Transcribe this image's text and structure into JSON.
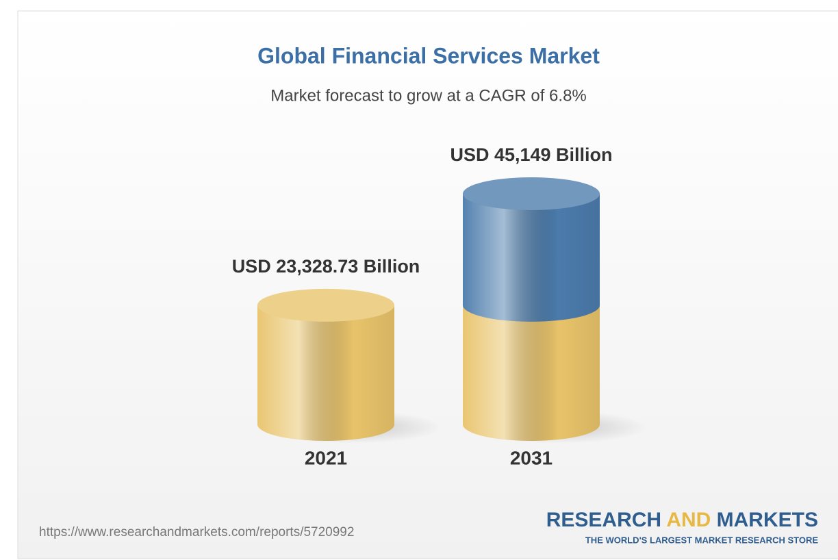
{
  "chart_data": {
    "type": "bar",
    "title": "Global Financial Services Market",
    "subtitle": "Market forecast to grow at a CAGR of 6.8%",
    "categories": [
      "2021",
      "2031"
    ],
    "values": [
      23328.73,
      45149
    ],
    "value_labels": [
      "USD 23,328.73 Billion",
      "USD 45,149 Billion"
    ],
    "color": "#e8c36a",
    "growth_color": "#4b7bab"
  },
  "footer": {
    "url": "https://www.researchandmarkets.com/reports/5720992",
    "logo": [
      "RESEARCH",
      "AND",
      "MARKETS"
    ],
    "tagline": "THE WORLD'S LARGEST MARKET RESEARCH STORE"
  }
}
